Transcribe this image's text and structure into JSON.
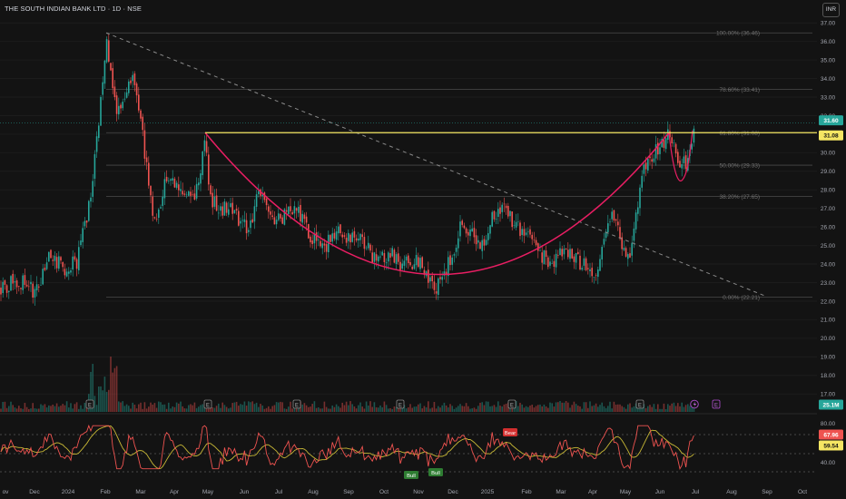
{
  "header": {
    "title": "THE SOUTH INDIAN BANK LTD · 1D · NSE",
    "currency": "INR"
  },
  "price_axis": {
    "ticks": [
      "37.00",
      "36.00",
      "35.00",
      "34.00",
      "33.00",
      "32.00",
      "31.00",
      "30.00",
      "29.00",
      "28.00",
      "27.00",
      "26.00",
      "25.00",
      "24.00",
      "23.00",
      "22.00",
      "21.00",
      "20.00",
      "19.00",
      "18.00",
      "17.00"
    ]
  },
  "price_badges": {
    "last": "31.60",
    "resistance": "31.08",
    "volume": "25.1M",
    "last_color": "#26a69a",
    "resistance_color": "#f5e663"
  },
  "rsi_axis": {
    "ticks": [
      "80.00",
      "60.00",
      "40.00"
    ],
    "rsi_value": "67.96",
    "ma_value": "59.54"
  },
  "time_axis": {
    "labels": [
      "ov",
      "Dec",
      "2024",
      "Feb",
      "Mar",
      "Apr",
      "May",
      "Jun",
      "Jul",
      "Aug",
      "Sep",
      "Oct",
      "Nov",
      "Dec",
      "2025",
      "Feb",
      "Mar",
      "Apr",
      "May",
      "Jun",
      "Jul",
      "Aug",
      "Sep",
      "Oct"
    ]
  },
  "fib_levels": [
    {
      "label": "100.00% (36.46)",
      "price": 36.46
    },
    {
      "label": "78.60% (33.41)",
      "price": 33.41
    },
    {
      "label": "61.80% (31.08)",
      "price": 31.08
    },
    {
      "label": "50.00% (29.33)",
      "price": 29.33
    },
    {
      "label": "38.20% (27.65)",
      "price": 27.65
    },
    {
      "label": "0.00% (22.21)",
      "price": 22.21
    }
  ],
  "signals": {
    "bull1": "Bull",
    "bull2": "Bull",
    "bear": "Bear"
  },
  "event_markers": [
    "E",
    "E",
    "E",
    "E",
    "E",
    "E",
    "E"
  ],
  "colors": {
    "up": "#26a69a",
    "down": "#ef5350",
    "cup": "#e91e63",
    "resistance": "#f5e663",
    "rsi": "#ef5350",
    "rsi_ma": "#c8b836",
    "background": "#131313"
  },
  "chart_data": {
    "type": "candlestick",
    "symbol": "THE SOUTH INDIAN BANK LTD",
    "interval": "1D",
    "exchange": "NSE",
    "currency": "INR",
    "price_range": [
      17,
      37
    ],
    "annotations": {
      "cup_and_handle": true,
      "resistance_level": 31.08,
      "descending_trendline": {
        "from": {
          "date": "2024-02",
          "price": 36.46
        },
        "to": {
          "date": "2025-07",
          "price": 22.3
        }
      }
    },
    "approx_monthly_closes": [
      {
        "month": "2023-11",
        "close": 23.0
      },
      {
        "month": "2023-12",
        "close": 25.5
      },
      {
        "month": "2024-01",
        "close": 30.5
      },
      {
        "month": "2024-02",
        "close": 33.0
      },
      {
        "month": "2024-03",
        "close": 27.5
      },
      {
        "month": "2024-04",
        "close": 29.5
      },
      {
        "month": "2024-05",
        "close": 27.5
      },
      {
        "month": "2024-06",
        "close": 26.5
      },
      {
        "month": "2024-07",
        "close": 26.5
      },
      {
        "month": "2024-08",
        "close": 25.0
      },
      {
        "month": "2024-09",
        "close": 25.3
      },
      {
        "month": "2024-10",
        "close": 24.0
      },
      {
        "month": "2024-11",
        "close": 23.5
      },
      {
        "month": "2024-12",
        "close": 25.5
      },
      {
        "month": "2025-01",
        "close": 26.0
      },
      {
        "month": "2025-02",
        "close": 25.5
      },
      {
        "month": "2025-03",
        "close": 24.0
      },
      {
        "month": "2025-04",
        "close": 24.5
      },
      {
        "month": "2025-05",
        "close": 28.5
      },
      {
        "month": "2025-06",
        "close": 30.0
      },
      {
        "month": "2025-07",
        "close": 31.6
      }
    ],
    "rsi": {
      "period_value": 67.96,
      "ma_value": 59.54,
      "range": [
        40,
        80
      ]
    }
  }
}
